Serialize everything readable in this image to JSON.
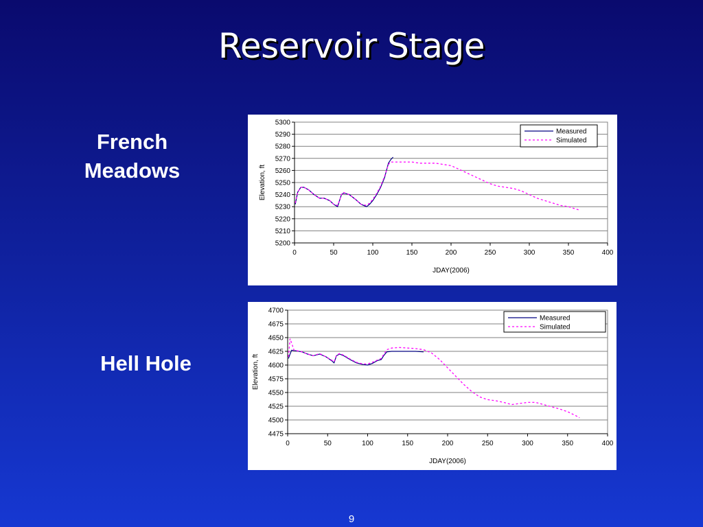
{
  "slide": {
    "title": "Reservoir Stage",
    "page_number": "9",
    "labels": {
      "french_meadows": "French\nMeadows",
      "hell_hole": "Hell Hole"
    }
  },
  "colors": {
    "measured": "#000080",
    "simulated": "#ff00ff"
  },
  "chart_data": [
    {
      "type": "line",
      "title": "",
      "xlabel": "JDAY(2006)",
      "ylabel": "Elevation, ft",
      "xlim": [
        0,
        400
      ],
      "ylim": [
        5200,
        5300
      ],
      "xticks": [
        0,
        50,
        100,
        150,
        200,
        250,
        300,
        350,
        400
      ],
      "yticks": [
        5200,
        5210,
        5220,
        5230,
        5240,
        5250,
        5260,
        5270,
        5280,
        5290,
        5300
      ],
      "grid": "horizontal",
      "legend": "top-right",
      "series": [
        {
          "name": "Measured",
          "style": "solid",
          "x": [
            1,
            4,
            8,
            12,
            18,
            25,
            32,
            38,
            45,
            50,
            55,
            58,
            60,
            62,
            65,
            70,
            78,
            85,
            92,
            96,
            100,
            105,
            110,
            115,
            120,
            123,
            126
          ],
          "y": [
            5232,
            5242,
            5246,
            5246,
            5244,
            5240,
            5237,
            5237,
            5235,
            5232,
            5230,
            5236,
            5240,
            5241,
            5241,
            5240,
            5236,
            5232,
            5230,
            5232,
            5235,
            5240,
            5246,
            5254,
            5266,
            5269,
            5271
          ]
        },
        {
          "name": "Simulated",
          "style": "dashed",
          "x": [
            1,
            4,
            8,
            12,
            18,
            25,
            32,
            38,
            45,
            50,
            55,
            58,
            60,
            62,
            65,
            70,
            78,
            85,
            92,
            96,
            100,
            105,
            110,
            115,
            120,
            123,
            126,
            135,
            145,
            150,
            160,
            170,
            180,
            190,
            200,
            210,
            220,
            230,
            240,
            250,
            260,
            270,
            280,
            290,
            300,
            310,
            320,
            330,
            340,
            350,
            360,
            365
          ],
          "y": [
            5233,
            5242,
            5246,
            5246,
            5244,
            5240,
            5237,
            5237,
            5235,
            5232,
            5231,
            5236,
            5240,
            5242,
            5241,
            5240,
            5236,
            5232,
            5231,
            5233,
            5236,
            5241,
            5247,
            5255,
            5265,
            5267,
            5267,
            5267,
            5267,
            5267,
            5266,
            5266,
            5266,
            5265,
            5264,
            5261,
            5258,
            5255,
            5252,
            5249,
            5247,
            5246,
            5245,
            5243,
            5240,
            5237,
            5235,
            5233,
            5231,
            5230,
            5228,
            5227
          ]
        }
      ]
    },
    {
      "type": "line",
      "title": "",
      "xlabel": "JDAY(2006)",
      "ylabel": "Elevation, ft",
      "xlim": [
        0,
        400
      ],
      "ylim": [
        4475,
        4700
      ],
      "xticks": [
        0,
        50,
        100,
        150,
        200,
        250,
        300,
        350,
        400
      ],
      "yticks": [
        4475,
        4500,
        4525,
        4550,
        4575,
        4600,
        4625,
        4650,
        4675,
        4700
      ],
      "grid": "horizontal",
      "legend": "top-right",
      "series": [
        {
          "name": "Measured",
          "style": "solid",
          "x": [
            1,
            3,
            5,
            10,
            18,
            25,
            32,
            40,
            48,
            55,
            58,
            61,
            65,
            70,
            78,
            86,
            94,
            100,
            106,
            112,
            117,
            120,
            124,
            130,
            140,
            150,
            160,
            170
          ],
          "y": [
            4612,
            4620,
            4627,
            4626,
            4624,
            4620,
            4617,
            4620,
            4615,
            4608,
            4604,
            4617,
            4620,
            4617,
            4610,
            4604,
            4601,
            4600,
            4603,
            4608,
            4610,
            4617,
            4624,
            4625,
            4625,
            4625,
            4625,
            4624
          ]
        },
        {
          "name": "Simulated",
          "style": "dashed",
          "x": [
            1,
            3,
            5,
            8,
            12,
            18,
            25,
            32,
            40,
            48,
            55,
            58,
            61,
            65,
            70,
            78,
            86,
            94,
            100,
            106,
            112,
            117,
            120,
            124,
            130,
            140,
            150,
            160,
            170,
            180,
            190,
            200,
            210,
            220,
            230,
            240,
            250,
            260,
            270,
            280,
            290,
            300,
            310,
            320,
            330,
            340,
            350,
            360,
            365
          ],
          "y": [
            4615,
            4648,
            4640,
            4627,
            4626,
            4624,
            4620,
            4617,
            4621,
            4615,
            4609,
            4606,
            4618,
            4621,
            4618,
            4611,
            4605,
            4602,
            4602,
            4605,
            4609,
            4612,
            4619,
            4628,
            4631,
            4632,
            4631,
            4630,
            4628,
            4622,
            4610,
            4595,
            4580,
            4565,
            4552,
            4542,
            4537,
            4535,
            4532,
            4528,
            4530,
            4532,
            4532,
            4528,
            4524,
            4520,
            4515,
            4508,
            4504
          ]
        }
      ]
    }
  ]
}
